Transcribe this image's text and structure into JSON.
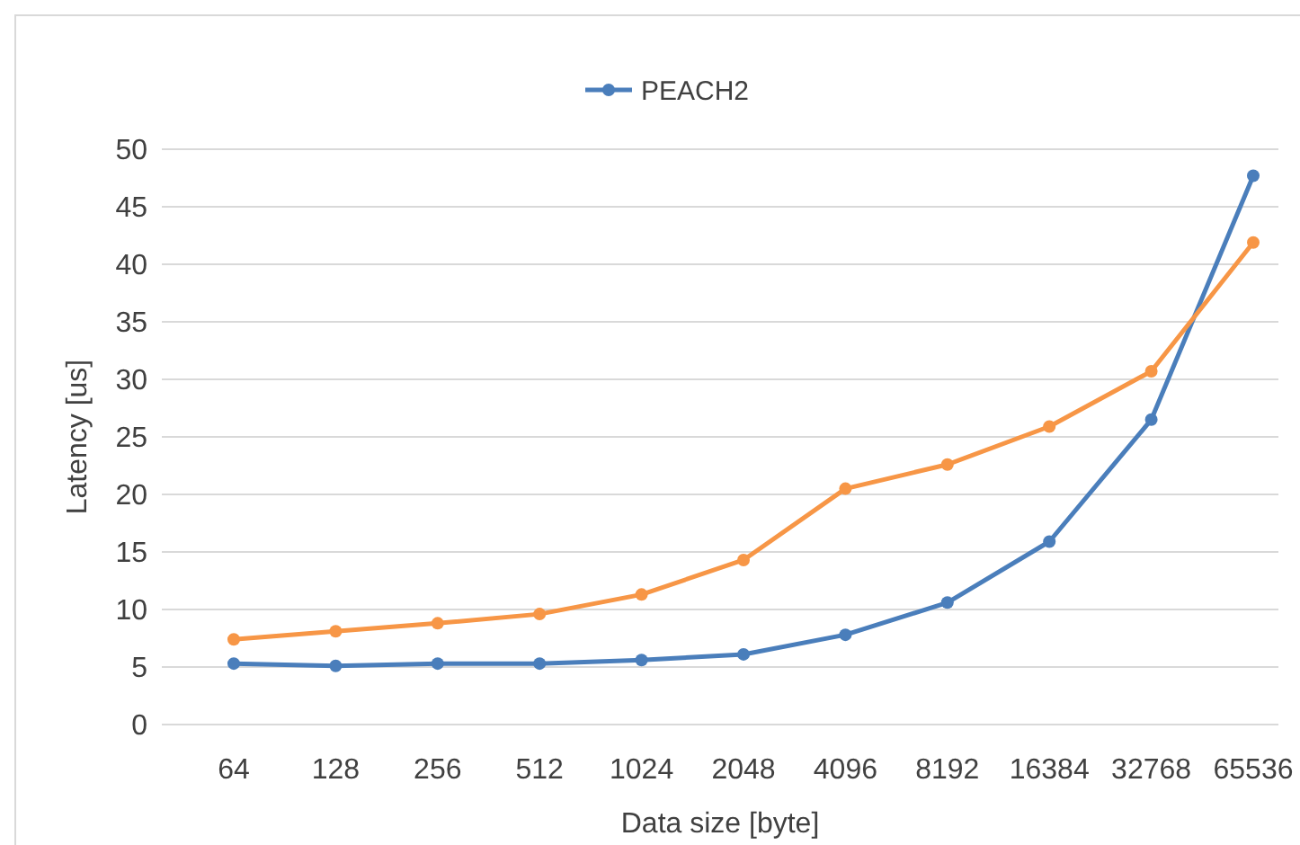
{
  "chart_data": {
    "type": "line",
    "xlabel": "Data size [byte]",
    "ylabel": "Latency [us]",
    "categories": [
      "64",
      "128",
      "256",
      "512",
      "1024",
      "2048",
      "4096",
      "8192",
      "16384",
      "32768",
      "65536"
    ],
    "series": [
      {
        "name": "PEACH2",
        "color": "#4a7ebb",
        "values": [
          5.3,
          5.1,
          5.3,
          5.3,
          5.6,
          6.1,
          7.8,
          10.6,
          15.9,
          26.5,
          47.7
        ]
      },
      {
        "color": "#f79646",
        "values": [
          7.4,
          8.1,
          8.8,
          9.6,
          11.3,
          14.3,
          20.5,
          22.6,
          25.9,
          30.7,
          41.9
        ]
      }
    ],
    "ylim": [
      0,
      50
    ],
    "yticks": [
      0,
      5,
      10,
      15,
      20,
      25,
      30,
      35,
      40,
      45,
      50
    ],
    "grid": "y",
    "legend": "top",
    "marker": "circle",
    "line_style": "solid"
  }
}
